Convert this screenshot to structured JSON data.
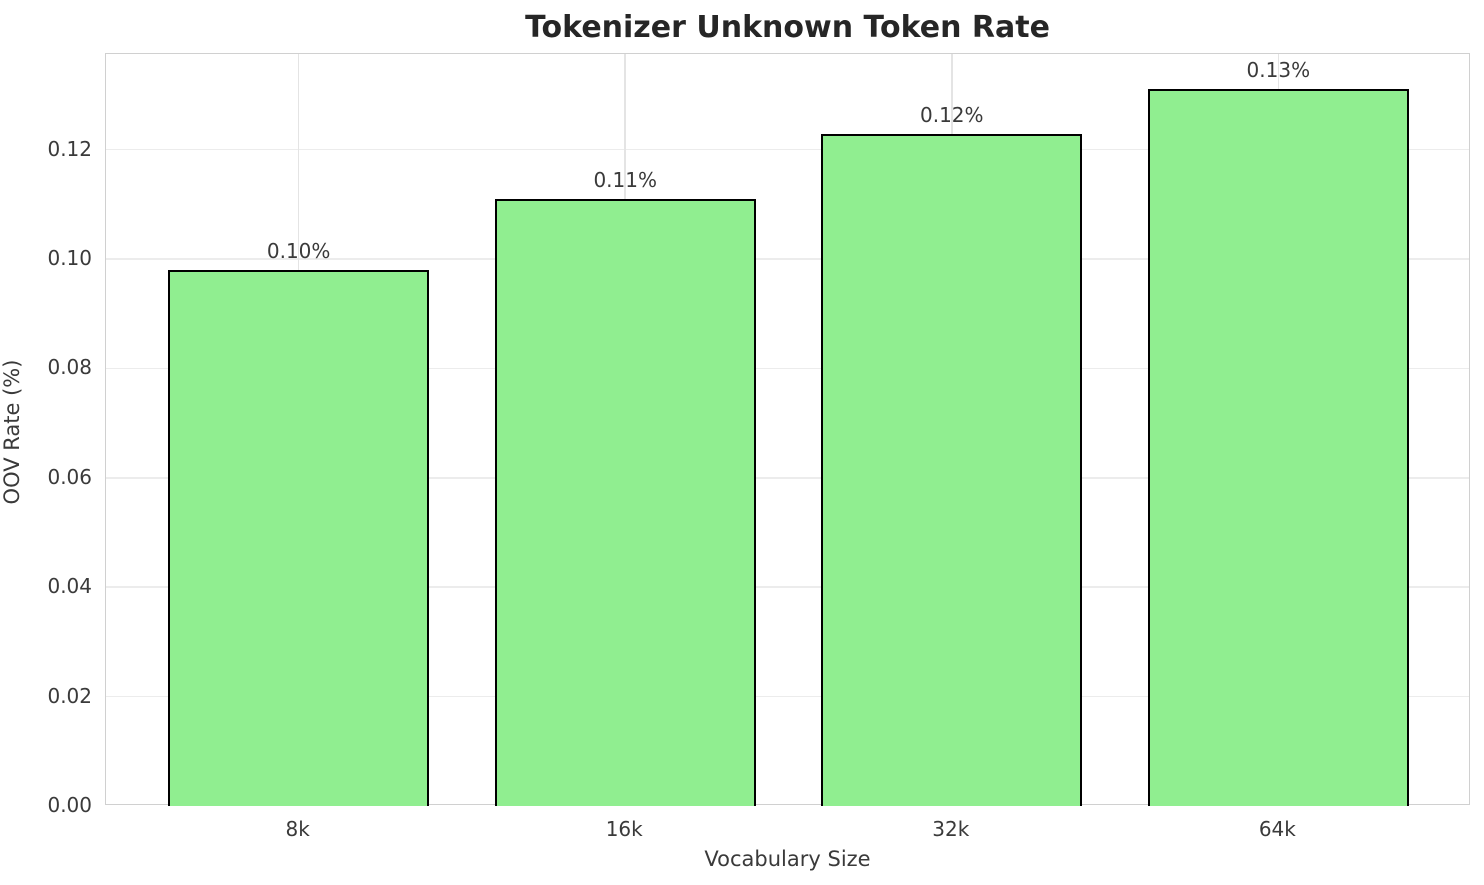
{
  "chart": {
    "title": "Tokenizer Unknown Token Rate",
    "xlabel": "Vocabulary Size",
    "ylabel": "OOV Rate (%)"
  },
  "chart_data": {
    "type": "bar",
    "title": "Tokenizer Unknown Token Rate",
    "xlabel": "Vocabulary Size",
    "ylabel": "OOV Rate (%)",
    "categories": [
      "8k",
      "16k",
      "32k",
      "64k"
    ],
    "values": [
      0.098,
      0.111,
      0.1228,
      0.1311
    ],
    "bar_labels": [
      "0.10%",
      "0.11%",
      "0.12%",
      "0.13%"
    ],
    "yticks": [
      0.0,
      0.02,
      0.04,
      0.06,
      0.08,
      0.1,
      0.12
    ],
    "ytick_labels": [
      "0.00",
      "0.02",
      "0.04",
      "0.06",
      "0.08",
      "0.10",
      "0.12"
    ],
    "ylim": [
      0,
      0.1375
    ],
    "bar_width_fraction": 0.8,
    "grid": true,
    "legend": false,
    "colors": {
      "bar_fill": "#90EE90",
      "bar_edge": "#000000",
      "grid": "#ececec",
      "spine": "#d0d0d0",
      "text": "#3a3a3a",
      "title": "#262626"
    }
  }
}
